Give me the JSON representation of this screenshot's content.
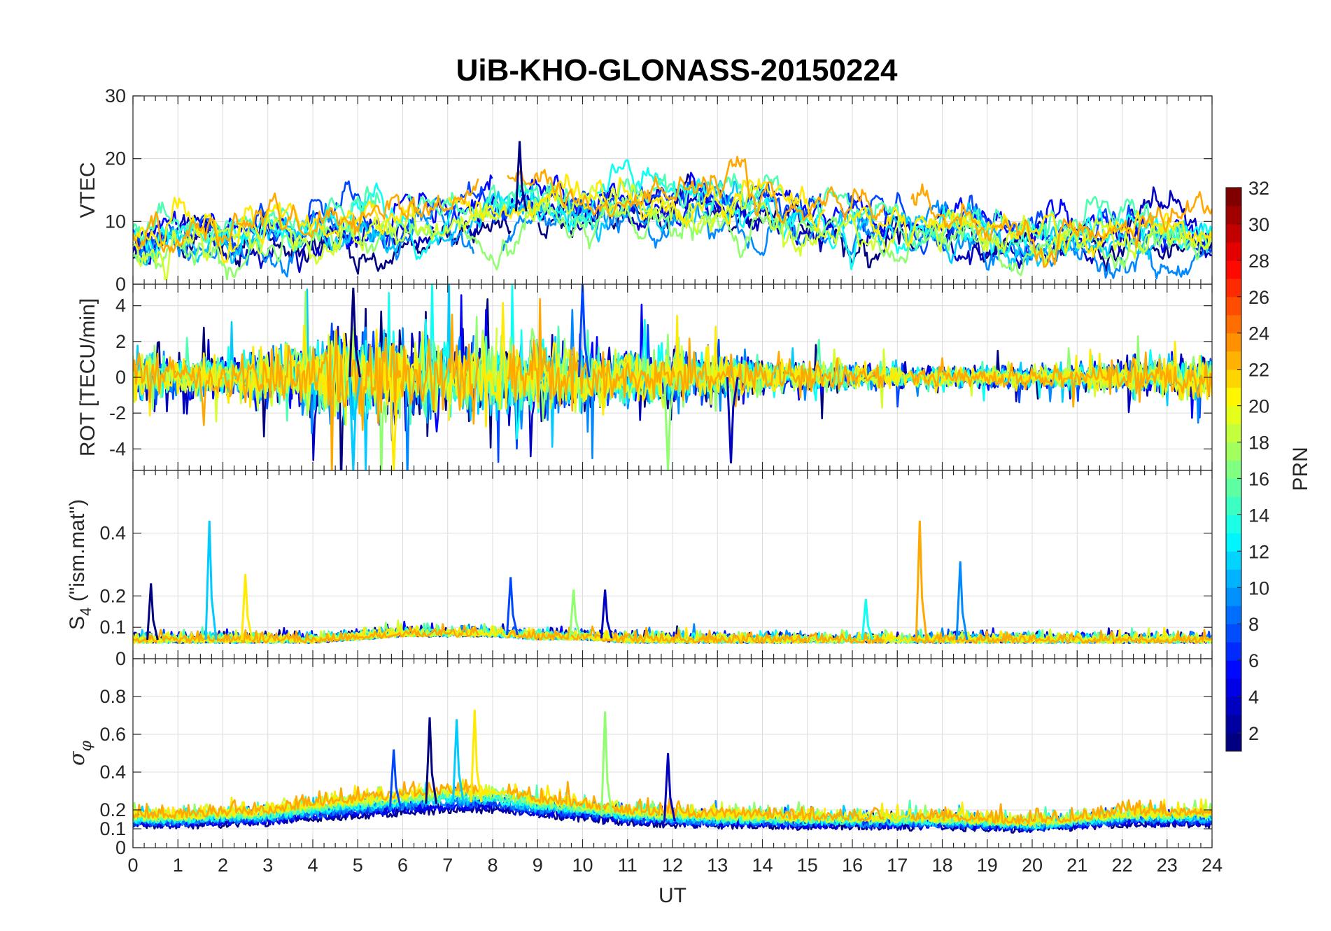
{
  "figure": {
    "title": "UiB-KHO-GLONASS-20150224"
  },
  "chart_data": [
    {
      "type": "line",
      "panel": "vtec",
      "ylabel": "VTEC",
      "xlim": [
        0,
        24
      ],
      "ylim": [
        0,
        30
      ],
      "yticks": [
        0,
        10,
        20,
        30
      ],
      "ytick_labels": [
        "0",
        "10",
        "20",
        "30"
      ],
      "baseline": [
        7,
        8,
        8,
        8,
        8,
        9,
        9,
        10,
        11,
        12,
        12,
        13,
        13,
        13,
        12,
        10,
        9,
        9,
        9,
        8,
        7,
        7,
        8,
        8,
        8
      ],
      "series_prns": [
        1,
        3,
        5,
        7,
        9,
        11,
        13,
        15,
        17,
        19,
        21,
        23
      ],
      "notable_peak": {
        "x": 8.6,
        "y": 22.8
      },
      "grid": true
    },
    {
      "type": "line",
      "panel": "rot",
      "ylabel": "ROT [TECU/min]",
      "xlim": [
        0,
        24
      ],
      "ylim": [
        -5.2,
        5.2
      ],
      "yticks": [
        -4,
        -2,
        0,
        2,
        4
      ],
      "ytick_labels": [
        "-4",
        "-2",
        "0",
        "2",
        "4"
      ],
      "activity": [
        1.3,
        1.0,
        1.0,
        1.4,
        1.9,
        2.3,
        2.1,
        2.0,
        1.9,
        1.7,
        1.6,
        1.4,
        1.3,
        1.1,
        0.9,
        0.8,
        0.7,
        0.6,
        0.5,
        0.5,
        0.5,
        0.6,
        0.8,
        1.0,
        1.0
      ],
      "notable_spikes": [
        {
          "x": 4.9,
          "y": 5.0
        },
        {
          "x": 4.9,
          "y": -5.2
        },
        {
          "x": 5.8,
          "y": -5.2
        },
        {
          "x": 10.0,
          "y": 5.2
        },
        {
          "x": 11.9,
          "y": -5.2
        },
        {
          "x": 13.3,
          "y": -4.8
        }
      ],
      "grid": true
    },
    {
      "type": "line",
      "panel": "s4",
      "ylabel_base": "S",
      "ylabel_sub": "4",
      "ylabel_rest": " (\"ism.mat\")",
      "xlim": [
        0,
        24
      ],
      "ylim": [
        0,
        0.6
      ],
      "yticks": [
        0,
        0.1,
        0.2,
        0.4
      ],
      "ytick_labels": [
        "0",
        "0.1",
        "0.2",
        "0.4"
      ],
      "baseline": [
        0.06,
        0.06,
        0.06,
        0.06,
        0.06,
        0.07,
        0.08,
        0.08,
        0.08,
        0.07,
        0.07,
        0.06,
        0.06,
        0.06,
        0.06,
        0.06,
        0.06,
        0.06,
        0.06,
        0.06,
        0.06,
        0.06,
        0.06,
        0.06,
        0.06
      ],
      "notable_spikes": [
        {
          "x": 0.4,
          "y": 0.24
        },
        {
          "x": 1.7,
          "y": 0.44
        },
        {
          "x": 2.5,
          "y": 0.27
        },
        {
          "x": 8.4,
          "y": 0.26
        },
        {
          "x": 9.8,
          "y": 0.22
        },
        {
          "x": 10.5,
          "y": 0.22
        },
        {
          "x": 16.3,
          "y": 0.19
        },
        {
          "x": 17.5,
          "y": 0.44
        },
        {
          "x": 18.4,
          "y": 0.31
        }
      ],
      "grid": true
    },
    {
      "type": "line",
      "panel": "sigma_phi",
      "ylabel_base": "σ",
      "ylabel_sub": "φ",
      "xlim": [
        0,
        24
      ],
      "ylim": [
        0,
        1.0
      ],
      "yticks": [
        0,
        0.1,
        0.2,
        0.4,
        0.6,
        0.8
      ],
      "ytick_labels": [
        "0",
        "0.1",
        "0.2",
        "0.4",
        "0.6",
        "0.8"
      ],
      "baseline": [
        0.13,
        0.13,
        0.14,
        0.15,
        0.18,
        0.2,
        0.22,
        0.24,
        0.24,
        0.2,
        0.18,
        0.15,
        0.14,
        0.13,
        0.13,
        0.12,
        0.12,
        0.12,
        0.12,
        0.11,
        0.1,
        0.12,
        0.14,
        0.14,
        0.14
      ],
      "notable_spikes": [
        {
          "x": 6.6,
          "y": 0.69
        },
        {
          "x": 7.2,
          "y": 0.68
        },
        {
          "x": 7.6,
          "y": 0.73
        },
        {
          "x": 5.8,
          "y": 0.52
        },
        {
          "x": 10.5,
          "y": 0.72
        },
        {
          "x": 11.9,
          "y": 0.5
        }
      ],
      "xlabel": "UT",
      "xticks": [
        0,
        1,
        2,
        3,
        4,
        5,
        6,
        7,
        8,
        9,
        10,
        11,
        12,
        13,
        14,
        15,
        16,
        17,
        18,
        19,
        20,
        21,
        22,
        23,
        24
      ],
      "xtick_labels": [
        "0",
        "1",
        "2",
        "3",
        "4",
        "5",
        "6",
        "7",
        "8",
        "9",
        "10",
        "11",
        "12",
        "13",
        "14",
        "15",
        "16",
        "17",
        "18",
        "19",
        "20",
        "21",
        "22",
        "23",
        "24"
      ],
      "grid": true
    }
  ],
  "colorbar": {
    "label": "PRN",
    "range": [
      1,
      32
    ],
    "ticks": [
      2,
      4,
      6,
      8,
      10,
      12,
      14,
      16,
      18,
      20,
      22,
      24,
      26,
      28,
      30,
      32
    ],
    "tick_labels": [
      "2",
      "4",
      "6",
      "8",
      "10",
      "12",
      "14",
      "16",
      "18",
      "20",
      "22",
      "24",
      "26",
      "28",
      "30",
      "32"
    ],
    "colormap": "jet"
  }
}
